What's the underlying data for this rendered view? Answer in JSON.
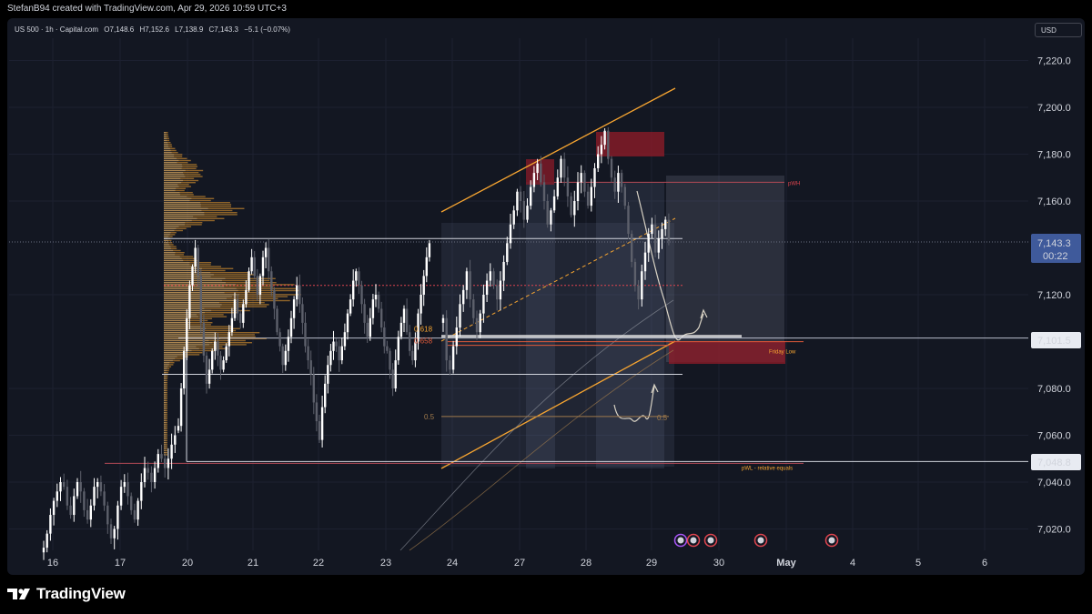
{
  "header": {
    "created_by": "StefanB94 created with TradingView.com, Apr 29, 2026 10:59 UTC+3"
  },
  "symbol": {
    "name": "US 500 · 1h · Capital.com",
    "open": "O7,148.6",
    "high": "H7,152.6",
    "low": "L7,138.9",
    "close": "C7,143.3",
    "change": "−5.1 (−0.07%)"
  },
  "currency_label": "USD",
  "brand": {
    "name": "TradingView"
  },
  "colors": {
    "background": "#131722",
    "up_candle": "#ffffff",
    "down_candle": "#5d606b",
    "accent_orange": "#f7a531",
    "supply_zone": "#8b1b28",
    "grid": "#1c2030",
    "current_price_bg": "#3f5a9b"
  },
  "chart_data": {
    "type": "candlestick",
    "ylim": [
      7010,
      7235
    ],
    "y_ticks": [
      "7,220.0",
      "7,200.0",
      "7,180.0",
      "7,160.0",
      "7,120.0",
      "7,080.0",
      "7,060.0",
      "7,040.0",
      "7,020.0"
    ],
    "x_ticks": [
      "16",
      "17",
      "20",
      "21",
      "22",
      "23",
      "24",
      "27",
      "28",
      "29",
      "30",
      "May",
      "4",
      "5",
      "6"
    ],
    "price_labels": {
      "current_price": "7,143.3",
      "countdown": "00:22",
      "level_1": "7,101.5",
      "level_2": "7,048.8"
    },
    "fib_labels": [
      "0.618",
      "0.658",
      "0.5",
      "0.5"
    ],
    "level_annotations": {
      "pwh": "pWH",
      "friday_low": "Friday Low",
      "pwl": "pWL - relative equals"
    },
    "levels": {
      "pWH": 7168,
      "high_line": 7144,
      "poc": 7124,
      "friday_low": 7101.5,
      "mid_line": 7086,
      "pWL": 7048.8,
      "fib_0_5": 7068
    },
    "series": [
      {
        "x_start": "16",
        "closes": [
          7012,
          7018,
          7026,
          7032,
          7036,
          7040,
          7038,
          7030,
          7026,
          7034,
          7040,
          7036,
          7028,
          7024,
          7030,
          7038,
          7040,
          7036,
          7030,
          7022,
          7016,
          7020,
          7030,
          7038,
          7040,
          7034,
          7028,
          7024,
          7032,
          7040,
          7046,
          7044,
          7040,
          7046,
          7052,
          7050,
          7046,
          7050,
          7056,
          7060
        ]
      },
      {
        "x_start": "20",
        "closes": [
          7064,
          7080,
          7096,
          7110,
          7124,
          7132,
          7140,
          7128,
          7108,
          7094,
          7082,
          7088,
          7096,
          7100,
          7094,
          7088,
          7092,
          7098,
          7104,
          7110,
          7118,
          7112,
          7108,
          7116,
          7122,
          7130,
          7136,
          7128,
          7120,
          7128,
          7136,
          7140,
          7130,
          7122,
          7114,
          7104,
          7098,
          7090,
          7096,
          7102,
          7110,
          7118,
          7124,
          7116,
          7108,
          7098,
          7092,
          7086,
          7074,
          7066,
          7058,
          7072,
          7082,
          7090,
          7096,
          7100,
          7098,
          7092,
          7098,
          7104,
          7112,
          7118,
          7126,
          7130,
          7124,
          7116,
          7108,
          7102,
          7110,
          7118,
          7120,
          7114,
          7106,
          7098,
          7096,
          7088,
          7080,
          7092,
          7102,
          7108,
          7114,
          7104,
          7096,
          7092,
          7100,
          7112,
          7120,
          7128,
          7136,
          7142
        ]
      },
      {
        "x_start": "24",
        "closes": [
          7110,
          7092,
          7088,
          7098,
          7106,
          7116,
          7122,
          7130,
          7118,
          7110,
          7104,
          7112,
          7120,
          7126,
          7130,
          7124,
          7118,
          7126,
          7134,
          7142,
          7150,
          7156,
          7164,
          7160,
          7152,
          7158,
          7166,
          7172,
          7176,
          7168,
          7160,
          7150,
          7156,
          7162,
          7170,
          7178,
          7170,
          7162,
          7154,
          7160,
          7168,
          7172,
          7164,
          7158,
          7166,
          7174,
          7180,
          7184,
          7190,
          7178,
          7170,
          7164,
          7172,
          7166,
          7158,
          7146,
          7134,
          7124,
          7118,
          7130,
          7138,
          7146,
          7150,
          7138,
          7144,
          7148,
          7152,
          7143
        ]
      }
    ]
  }
}
